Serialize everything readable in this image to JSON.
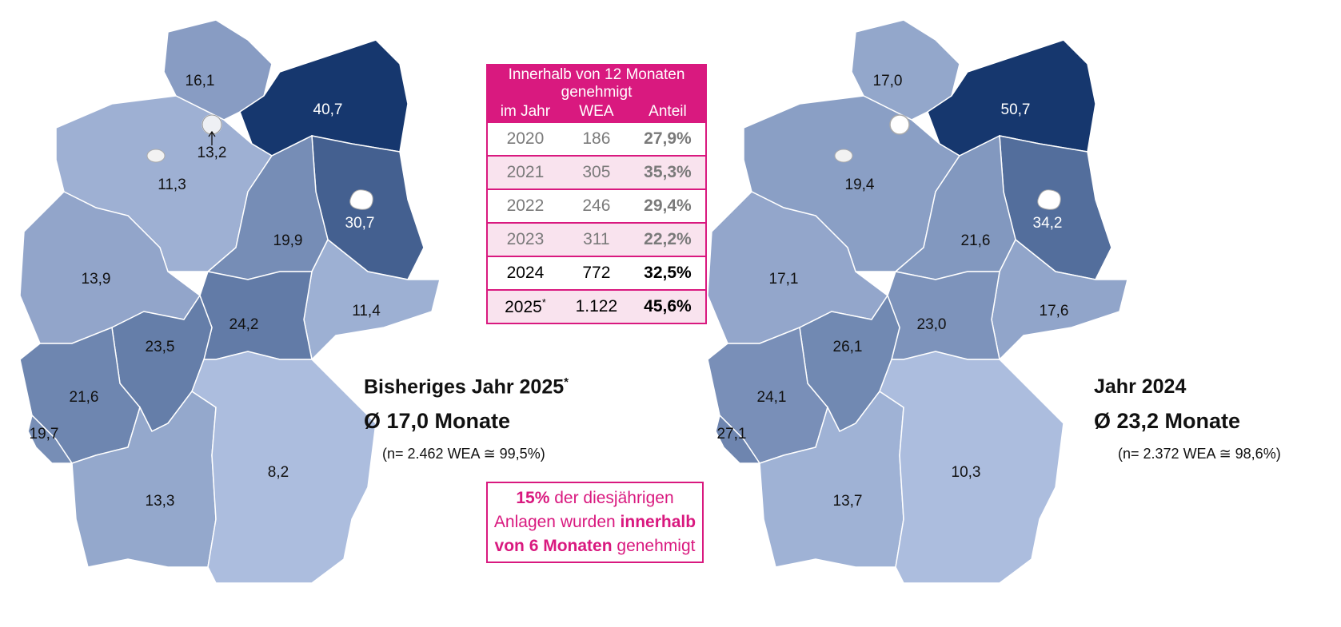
{
  "maps": [
    {
      "title": "Bisheriges Jahr 2025",
      "title_note": "*",
      "average": "Ø 17,0 Monate",
      "sample": "(n= 2.462 WEA ≅ 99,5%)",
      "regions": [
        "16,1",
        "13,2",
        "40,7",
        "11,3",
        "30,7",
        "19,9",
        "13,9",
        "11,4",
        "24,2",
        "23,5",
        "21,6",
        "19,7",
        "13,3",
        "8,2"
      ]
    },
    {
      "title": "Jahr 2024",
      "average": "Ø 23,2 Monate",
      "sample": "(n= 2.372 WEA ≅ 98,6%)",
      "regions": [
        "17,0",
        null,
        "50,7",
        "19,4",
        "34,2",
        "21,6",
        "17,1",
        "17,6",
        "23,0",
        "26,1",
        "24,1",
        "27,1",
        "13,7",
        "10,3"
      ]
    }
  ],
  "table": {
    "title": "Innerhalb von 12 Monaten genehmigt",
    "columns": [
      "im Jahr",
      "WEA",
      "Anteil"
    ],
    "rows": [
      {
        "year": "2020",
        "wea": "186",
        "share": "27,9%"
      },
      {
        "year": "2021",
        "wea": "305",
        "share": "35,3%"
      },
      {
        "year": "2022",
        "wea": "246",
        "share": "29,4%"
      },
      {
        "year": "2023",
        "wea": "311",
        "share": "22,2%"
      },
      {
        "year": "2024",
        "wea": "772",
        "share": "32,5%"
      },
      {
        "year": "2025",
        "note": "*",
        "wea": "1.122",
        "share": "45,6%"
      }
    ]
  },
  "note": [
    "15%",
    " der diesjährigen Anlagen wurden ",
    "innerhalb von",
    " ",
    "6 Monaten",
    " genehmigt"
  ]
}
